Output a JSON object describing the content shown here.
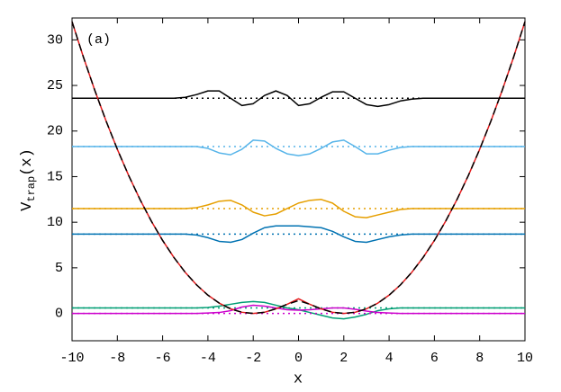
{
  "chart_data": {
    "type": "line",
    "annotation": "(a)",
    "xlabel": "x",
    "ylabel": {
      "base": "V",
      "sub": "trap",
      "rest": "(x)"
    },
    "xlim": [
      -10,
      10
    ],
    "xticks": [
      -10,
      -8,
      -6,
      -4,
      -2,
      0,
      2,
      4,
      6,
      8,
      10
    ],
    "ylim": [
      -3,
      32.4
    ],
    "yticks": [
      0,
      5,
      10,
      15,
      20,
      25,
      30
    ],
    "grid": false,
    "x": [
      -10,
      -9.5,
      -9,
      -8.5,
      -8,
      -7.5,
      -7,
      -6.5,
      -6,
      -5.5,
      -5,
      -4.5,
      -4,
      -3.5,
      -3,
      -2.5,
      -2,
      -1.5,
      -1,
      -0.5,
      0,
      0.5,
      1,
      1.5,
      2,
      2.5,
      3,
      3.5,
      4,
      4.5,
      5,
      5.5,
      6,
      6.5,
      7,
      7.5,
      8,
      8.5,
      9,
      9.5,
      10
    ],
    "series": [
      {
        "color": "#000000",
        "level": 23.6,
        "values": [
          23.6,
          23.6,
          23.6,
          23.6,
          23.6,
          23.6,
          23.6,
          23.6,
          23.6,
          23.6,
          23.7,
          24.0,
          24.4,
          24.4,
          23.6,
          22.8,
          23.0,
          23.9,
          24.4,
          23.9,
          22.8,
          23.0,
          23.7,
          24.3,
          24.3,
          23.6,
          22.9,
          22.7,
          22.9,
          23.3,
          23.5,
          23.6,
          23.6,
          23.6,
          23.6,
          23.6,
          23.6,
          23.6,
          23.6,
          23.6,
          23.6
        ]
      },
      {
        "color": "#56b4e9",
        "level": 18.3,
        "values": [
          18.3,
          18.3,
          18.3,
          18.3,
          18.3,
          18.3,
          18.3,
          18.3,
          18.3,
          18.3,
          18.3,
          18.3,
          18.1,
          17.6,
          17.4,
          18.0,
          19.0,
          18.9,
          18.1,
          17.5,
          17.3,
          17.5,
          18.1,
          18.8,
          19.0,
          18.3,
          17.5,
          17.5,
          17.9,
          18.2,
          18.3,
          18.3,
          18.3,
          18.3,
          18.3,
          18.3,
          18.3,
          18.3,
          18.3,
          18.3,
          18.3
        ]
      },
      {
        "color": "#e69f00",
        "level": 11.5,
        "values": [
          11.5,
          11.5,
          11.5,
          11.5,
          11.5,
          11.5,
          11.5,
          11.5,
          11.5,
          11.5,
          11.5,
          11.6,
          11.9,
          12.3,
          12.4,
          11.9,
          11.1,
          10.7,
          10.9,
          11.5,
          12.1,
          12.4,
          12.5,
          12.1,
          11.2,
          10.6,
          10.5,
          10.8,
          11.1,
          11.4,
          11.5,
          11.5,
          11.5,
          11.5,
          11.5,
          11.5,
          11.5,
          11.5,
          11.5,
          11.5,
          11.5
        ]
      },
      {
        "color": "#0072b2",
        "level": 8.7,
        "values": [
          8.7,
          8.7,
          8.7,
          8.7,
          8.7,
          8.7,
          8.7,
          8.7,
          8.7,
          8.7,
          8.7,
          8.6,
          8.3,
          7.9,
          7.8,
          8.1,
          8.8,
          9.4,
          9.6,
          9.6,
          9.6,
          9.5,
          9.4,
          9.0,
          8.4,
          7.9,
          7.8,
          8.1,
          8.4,
          8.6,
          8.7,
          8.7,
          8.7,
          8.7,
          8.7,
          8.7,
          8.7,
          8.7,
          8.7,
          8.7,
          8.7
        ]
      },
      {
        "color": "#009e73",
        "level": 0.6,
        "values": [
          0.6,
          0.6,
          0.6,
          0.6,
          0.6,
          0.6,
          0.6,
          0.6,
          0.6,
          0.6,
          0.6,
          0.6,
          0.65,
          0.8,
          1.0,
          1.2,
          1.3,
          1.2,
          0.9,
          0.6,
          0.4,
          0.1,
          -0.2,
          -0.5,
          -0.6,
          -0.4,
          -0.1,
          0.3,
          0.5,
          0.6,
          0.6,
          0.6,
          0.6,
          0.6,
          0.6,
          0.6,
          0.6,
          0.6,
          0.6,
          0.6,
          0.6
        ]
      },
      {
        "color": "#cc00cc",
        "level": 0,
        "values": [
          0,
          0,
          0,
          0,
          0,
          0,
          0,
          0,
          0,
          0,
          0,
          0,
          0.05,
          0.1,
          0.3,
          0.7,
          0.9,
          0.8,
          0.6,
          0.4,
          0.35,
          0.4,
          0.5,
          0.6,
          0.6,
          0.45,
          0.25,
          0.1,
          0.05,
          0,
          0,
          0,
          0,
          0,
          0,
          0,
          0,
          0,
          0,
          0,
          0
        ]
      },
      {
        "color": "#e41a1c",
        "values": [
          32,
          28.125,
          24.5,
          21.125,
          18,
          15.125,
          12.5,
          10.125,
          8,
          6.125,
          4.5,
          3.125,
          2,
          1.125,
          0.5,
          0.125,
          0,
          0.125,
          0.5,
          1.0,
          1.6,
          1.0,
          0.5,
          0.125,
          0,
          0.125,
          0.5,
          1.125,
          2,
          3.125,
          4.5,
          6.125,
          8,
          10.125,
          12.5,
          15.125,
          18,
          21.125,
          24.5,
          28.125,
          32
        ]
      },
      {
        "color": "#000000",
        "dashed": true,
        "values": [
          32,
          28.125,
          24.5,
          21.125,
          18,
          15.125,
          12.5,
          10.125,
          8,
          6.125,
          4.5,
          3.125,
          2,
          1.125,
          0.5,
          0.125,
          0,
          0.125,
          0.5,
          1.0,
          1.4,
          1.0,
          0.5,
          0.125,
          0,
          0.125,
          0.5,
          1.125,
          2,
          3.125,
          4.5,
          6.125,
          8,
          10.125,
          12.5,
          15.125,
          18,
          21.125,
          24.5,
          28.125,
          32
        ]
      }
    ]
  }
}
